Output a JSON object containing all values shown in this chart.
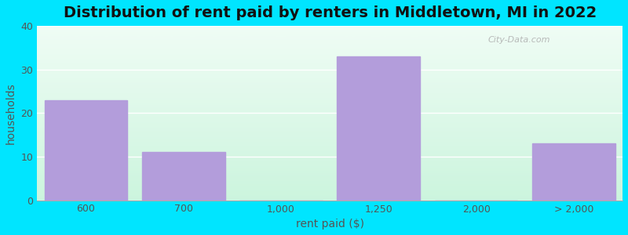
{
  "title": "Distribution of rent paid by renters in Middletown, MI in 2022",
  "xlabel": "rent paid ($)",
  "ylabel": "households",
  "categories": [
    "600",
    "700",
    "1,000",
    "1,250",
    "2,000",
    "> 2,000"
  ],
  "values": [
    23,
    11,
    0,
    33,
    0,
    13
  ],
  "bar_color": "#b39ddb",
  "ylim": [
    0,
    40
  ],
  "yticks": [
    0,
    10,
    20,
    30,
    40
  ],
  "background_color": "#00e5ff",
  "grid_color": "#ffffff",
  "title_fontsize": 14,
  "axis_label_fontsize": 10,
  "tick_fontsize": 9,
  "watermark": "City-Data.com",
  "bar_positions": [
    0,
    1,
    2,
    3,
    4,
    5
  ],
  "bar_width": 0.85,
  "xlim": [
    -0.5,
    5.5
  ]
}
